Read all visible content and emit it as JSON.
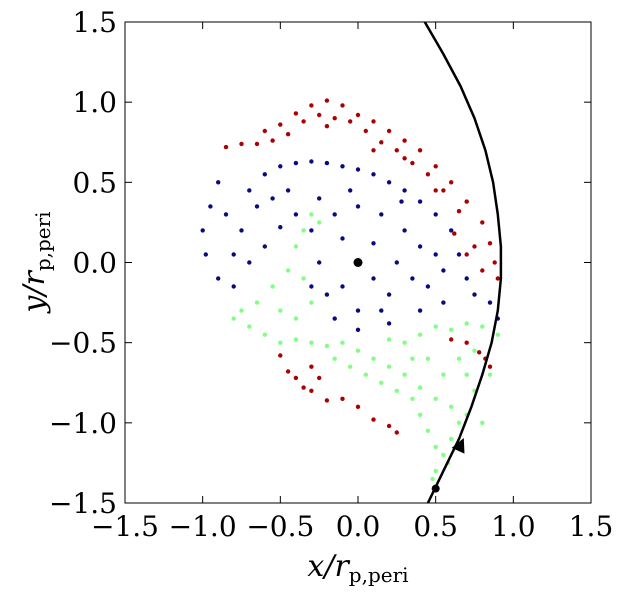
{
  "chart_data": {
    "type": "scatter",
    "title": "",
    "xlabel": {
      "main": "x/r",
      "sub": "p,peri"
    },
    "ylabel": {
      "main": "y/r",
      "sub": "p,peri"
    },
    "xlim": [
      -1.5,
      1.5
    ],
    "ylim": [
      -1.5,
      1.5
    ],
    "xticks": [
      -1.5,
      -1.0,
      -0.5,
      0.0,
      0.5,
      1.0,
      1.5
    ],
    "yticks": [
      -1.5,
      -1.0,
      -0.5,
      0.0,
      0.5,
      1.0,
      1.5
    ],
    "xtick_labels": [
      "−1.5",
      "−1.0",
      "−0.5",
      "0.0",
      "0.5",
      "1.0",
      "1.5"
    ],
    "ytick_labels": [
      "−1.5",
      "−1.0",
      "−0.5",
      "0.0",
      "0.5",
      "1.0",
      "1.5"
    ],
    "grid": false,
    "legend": "none",
    "series": [
      {
        "color": "#aa0000",
        "points": [
          [
            -0.85,
            0.72
          ],
          [
            -0.75,
            0.74
          ],
          [
            -0.6,
            0.82
          ],
          [
            -0.5,
            0.86
          ],
          [
            -0.4,
            0.93
          ],
          [
            -0.3,
            0.98
          ],
          [
            -0.2,
            1.01
          ],
          [
            -0.1,
            0.98
          ],
          [
            0.0,
            0.92
          ],
          [
            0.1,
            0.88
          ],
          [
            0.2,
            0.82
          ],
          [
            0.3,
            0.76
          ],
          [
            0.4,
            0.7
          ],
          [
            0.5,
            0.6
          ],
          [
            0.6,
            0.5
          ],
          [
            0.7,
            0.38
          ],
          [
            0.8,
            0.25
          ],
          [
            0.85,
            0.12
          ],
          [
            0.88,
            0.0
          ],
          [
            0.9,
            -0.1
          ],
          [
            0.75,
            0.1
          ],
          [
            0.65,
            0.32
          ],
          [
            0.55,
            0.45
          ],
          [
            0.45,
            0.55
          ],
          [
            0.35,
            0.62
          ],
          [
            0.25,
            0.7
          ],
          [
            0.15,
            0.75
          ],
          [
            0.05,
            0.82
          ],
          [
            -0.05,
            0.88
          ],
          [
            -0.15,
            0.9
          ],
          [
            -0.25,
            0.92
          ],
          [
            -0.35,
            0.88
          ],
          [
            -0.45,
            0.8
          ],
          [
            -0.55,
            0.76
          ],
          [
            -0.65,
            0.74
          ],
          [
            -0.2,
            0.85
          ],
          [
            0.1,
            0.7
          ],
          [
            0.3,
            0.65
          ],
          [
            0.5,
            0.45
          ],
          [
            0.62,
            0.18
          ],
          [
            0.7,
            0.05
          ],
          [
            0.8,
            -0.05
          ],
          [
            -0.5,
            -0.58
          ],
          [
            -0.45,
            -0.68
          ],
          [
            -0.4,
            -0.72
          ],
          [
            -0.35,
            -0.78
          ],
          [
            -0.3,
            -0.8
          ],
          [
            -0.2,
            -0.86
          ],
          [
            -0.1,
            -0.85
          ],
          [
            0.0,
            -0.9
          ],
          [
            0.1,
            -0.98
          ],
          [
            0.2,
            -1.02
          ],
          [
            0.25,
            -1.06
          ],
          [
            -0.3,
            -0.65
          ],
          [
            -0.25,
            -0.72
          ],
          [
            0.7,
            -0.5
          ],
          [
            0.78,
            -0.56
          ],
          [
            0.85,
            -0.65
          ],
          [
            0.82,
            -0.6
          ],
          [
            0.6,
            -0.48
          ]
        ]
      },
      {
        "color": "#0a0a80",
        "points": [
          [
            -0.9,
            0.5
          ],
          [
            -0.95,
            0.35
          ],
          [
            -1.0,
            0.2
          ],
          [
            -0.98,
            0.05
          ],
          [
            -0.9,
            -0.1
          ],
          [
            -0.8,
            -0.15
          ],
          [
            -0.7,
            0.45
          ],
          [
            -0.6,
            0.55
          ],
          [
            -0.5,
            0.6
          ],
          [
            -0.4,
            0.62
          ],
          [
            -0.3,
            0.63
          ],
          [
            -0.2,
            0.62
          ],
          [
            -0.1,
            0.6
          ],
          [
            0.0,
            0.58
          ],
          [
            0.1,
            0.55
          ],
          [
            0.2,
            0.5
          ],
          [
            0.3,
            0.45
          ],
          [
            0.4,
            0.38
          ],
          [
            0.5,
            0.3
          ],
          [
            0.6,
            0.2
          ],
          [
            0.65,
            0.05
          ],
          [
            0.7,
            -0.1
          ],
          [
            0.75,
            -0.2
          ],
          [
            0.85,
            -0.25
          ],
          [
            0.9,
            -0.35
          ],
          [
            0.55,
            -0.25
          ],
          [
            0.4,
            -0.3
          ],
          [
            0.2,
            -0.38
          ],
          [
            0.0,
            -0.42
          ],
          [
            -0.15,
            -0.35
          ],
          [
            -0.85,
            0.3
          ],
          [
            -0.75,
            0.2
          ],
          [
            -0.65,
            0.35
          ],
          [
            -0.55,
            0.4
          ],
          [
            -0.45,
            0.45
          ],
          [
            -0.7,
            0.0
          ],
          [
            -0.6,
            0.1
          ],
          [
            -0.5,
            0.22
          ],
          [
            -0.4,
            0.3
          ],
          [
            -0.8,
            0.05
          ],
          [
            -0.15,
            0.3
          ],
          [
            0.15,
            0.3
          ],
          [
            -0.25,
            0.0
          ],
          [
            0.25,
            0.0
          ],
          [
            -0.2,
            -0.2
          ],
          [
            0.2,
            -0.2
          ],
          [
            0.0,
            0.35
          ],
          [
            0.0,
            -0.3
          ],
          [
            -0.3,
            0.2
          ],
          [
            0.3,
            0.2
          ],
          [
            -0.3,
            -0.15
          ],
          [
            0.35,
            -0.1
          ],
          [
            -0.1,
            0.15
          ],
          [
            0.1,
            -0.1
          ],
          [
            0.4,
            0.1
          ],
          [
            0.45,
            -0.15
          ],
          [
            -0.1,
            -0.15
          ],
          [
            0.1,
            0.12
          ],
          [
            0.5,
            0.05
          ],
          [
            -0.05,
            0.45
          ],
          [
            0.15,
            -0.3
          ],
          [
            0.55,
            -0.05
          ],
          [
            -0.25,
            0.4
          ],
          [
            0.28,
            0.38
          ]
        ]
      },
      {
        "color": "#80ff80",
        "points": [
          [
            -0.35,
            0.2
          ],
          [
            -0.4,
            0.1
          ],
          [
            -0.45,
            -0.05
          ],
          [
            -0.55,
            -0.15
          ],
          [
            -0.65,
            -0.25
          ],
          [
            -0.75,
            -0.3
          ],
          [
            -0.8,
            -0.35
          ],
          [
            -0.7,
            -0.4
          ],
          [
            -0.6,
            -0.45
          ],
          [
            -0.5,
            -0.5
          ],
          [
            -0.4,
            -0.48
          ],
          [
            -0.3,
            -0.5
          ],
          [
            -0.2,
            -0.52
          ],
          [
            -0.1,
            -0.5
          ],
          [
            0.0,
            -0.55
          ],
          [
            0.1,
            -0.6
          ],
          [
            0.2,
            -0.65
          ],
          [
            0.3,
            -0.7
          ],
          [
            0.4,
            -0.78
          ],
          [
            0.5,
            -0.85
          ],
          [
            0.6,
            -0.9
          ],
          [
            0.7,
            -0.95
          ],
          [
            0.8,
            -1.0
          ],
          [
            0.45,
            -1.05
          ],
          [
            0.5,
            -1.15
          ],
          [
            0.55,
            -1.2
          ],
          [
            0.6,
            -1.1
          ],
          [
            0.65,
            -1.0
          ],
          [
            0.75,
            -0.8
          ],
          [
            0.85,
            -0.7
          ],
          [
            0.9,
            -0.45
          ],
          [
            0.8,
            -0.4
          ],
          [
            0.7,
            -0.38
          ],
          [
            0.6,
            -0.42
          ],
          [
            0.5,
            -0.4
          ],
          [
            0.4,
            -0.45
          ],
          [
            0.3,
            -0.5
          ],
          [
            0.2,
            -0.48
          ],
          [
            -0.25,
            0.25
          ],
          [
            -0.3,
            0.3
          ],
          [
            -0.5,
            -0.3
          ],
          [
            -0.4,
            -0.35
          ],
          [
            -0.3,
            -0.25
          ],
          [
            -0.35,
            -0.1
          ],
          [
            0.05,
            -0.7
          ],
          [
            0.15,
            -0.75
          ],
          [
            0.25,
            -0.8
          ],
          [
            0.35,
            -0.85
          ],
          [
            0.4,
            -0.95
          ],
          [
            0.55,
            -0.7
          ],
          [
            0.65,
            -0.6
          ],
          [
            0.75,
            -0.55
          ],
          [
            0.45,
            -0.6
          ],
          [
            0.35,
            -0.6
          ],
          [
            -0.15,
            -0.6
          ],
          [
            -0.05,
            -0.65
          ],
          [
            0.5,
            -1.3
          ],
          [
            0.48,
            -1.35
          ],
          [
            0.58,
            -1.25
          ],
          [
            0.7,
            -0.7
          ]
        ]
      }
    ],
    "orbit": {
      "color": "#000000",
      "points": [
        [
          0.43,
          1.5
        ],
        [
          0.55,
          1.3
        ],
        [
          0.66,
          1.1
        ],
        [
          0.75,
          0.9
        ],
        [
          0.82,
          0.7
        ],
        [
          0.87,
          0.5
        ],
        [
          0.9,
          0.3
        ],
        [
          0.92,
          0.1
        ],
        [
          0.92,
          -0.1
        ],
        [
          0.9,
          -0.3
        ],
        [
          0.86,
          -0.5
        ],
        [
          0.8,
          -0.7
        ],
        [
          0.73,
          -0.9
        ],
        [
          0.65,
          -1.1
        ],
        [
          0.55,
          -1.3
        ],
        [
          0.45,
          -1.5
        ]
      ],
      "arrow_at": [
        0.66,
        -1.14
      ],
      "dot_at": [
        0.5,
        -1.41
      ]
    },
    "center_ring": {
      "x": 0.0,
      "y": 0.0,
      "ring_color": "#ffffff",
      "dot_color": "#000000"
    }
  }
}
